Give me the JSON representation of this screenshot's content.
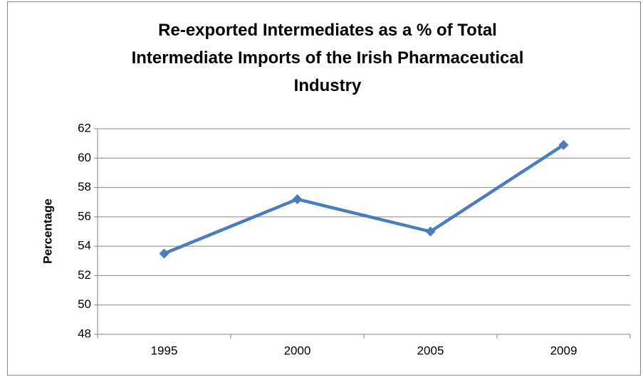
{
  "chart_data": {
    "type": "line",
    "title": "Re-exported Intermediates as a % of Total\nIntermediate Imports of the Irish Pharmaceutical\nIndustry",
    "y_label": "Percentage",
    "categories": [
      "1995",
      "2000",
      "2005",
      "2009"
    ],
    "series": [
      {
        "name": "Percentage",
        "color": "#4a7ebb",
        "values": [
          53.5,
          57.2,
          55.0,
          60.9
        ]
      }
    ],
    "ylim": [
      48,
      62
    ],
    "yticks": [
      48,
      50,
      52,
      54,
      56,
      58,
      60,
      62
    ],
    "grid": true
  }
}
